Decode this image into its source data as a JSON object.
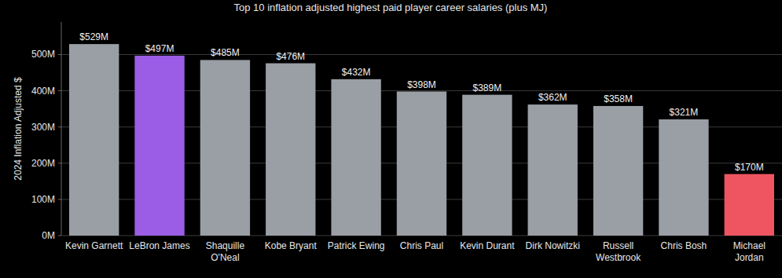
{
  "chart_data": {
    "type": "bar",
    "title": "Top 10 inflation adjusted highest paid player career salaries (plus MJ)",
    "y_label": "2024 Inflation Adjusted $",
    "categories": [
      "Kevin Garnett",
      "LeBron James",
      "Shaquille O'Neal",
      "Kobe Bryant",
      "Patrick Ewing",
      "Chris Paul",
      "Kevin Durant",
      "Dirk Nowitzki",
      "Russell Westbrook",
      "Chris Bosh",
      "Michael Jordan"
    ],
    "values": [
      529000000,
      497000000,
      485000000,
      476000000,
      432000000,
      398000000,
      389000000,
      362000000,
      358000000,
      321000000,
      170000000
    ],
    "value_labels": [
      "$529M",
      "$497M",
      "$485M",
      "$476M",
      "$432M",
      "$398M",
      "$389M",
      "$362M",
      "$358M",
      "$321M",
      "$170M"
    ],
    "colors": [
      "#9a9ea5",
      "#9b5de5",
      "#9a9ea5",
      "#9a9ea5",
      "#9a9ea5",
      "#9a9ea5",
      "#9a9ea5",
      "#9a9ea5",
      "#9a9ea5",
      "#9a9ea5",
      "#ee5560"
    ],
    "ylim": [
      0,
      590000000
    ],
    "yticks": [
      {
        "value": 0,
        "label": "0M"
      },
      {
        "value": 100000000,
        "label": "100M"
      },
      {
        "value": 200000000,
        "label": "200M"
      },
      {
        "value": 300000000,
        "label": "300M"
      },
      {
        "value": 400000000,
        "label": "400M"
      },
      {
        "value": 500000000,
        "label": "500M"
      }
    ],
    "grid": true,
    "data_labels": true
  }
}
